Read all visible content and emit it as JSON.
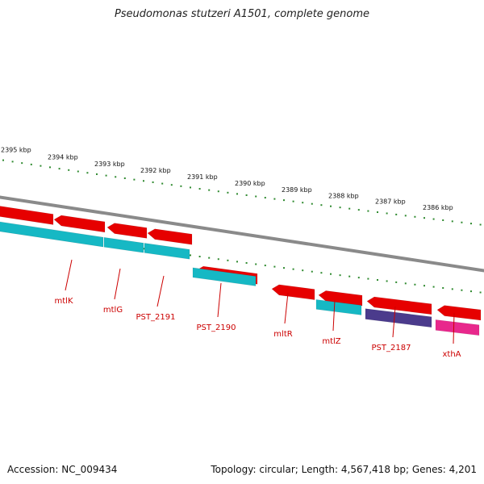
{
  "title": "Pseudomonas stutzeri A1501, complete genome",
  "colors": {
    "backbone": "#8a8a8a",
    "forward_gene": "#e60000",
    "reverse_gene": "#16b8c4",
    "pseudo_gene": "#4b3b8c",
    "rna_gene": "#e8288c",
    "tick": "#2f8a2f",
    "label": "#cc0000"
  },
  "kbp_ticks": [
    "2395 kbp",
    "2394 kbp",
    "2393 kbp",
    "2392 kbp",
    "2391 kbp",
    "2390 kbp",
    "2389 kbp",
    "2388 kbp",
    "2387 kbp",
    "2386 kbp"
  ],
  "gene_labels": [
    "mtlK",
    "mtlG",
    "PST_2191",
    "PST_2190",
    "mltR",
    "mtlZ",
    "PST_2187",
    "xthA"
  ],
  "footer": {
    "accession": "Accession: NC_009434",
    "summary": "Topology: circular; Length: 4,567,418 bp; Genes: 4,201"
  }
}
